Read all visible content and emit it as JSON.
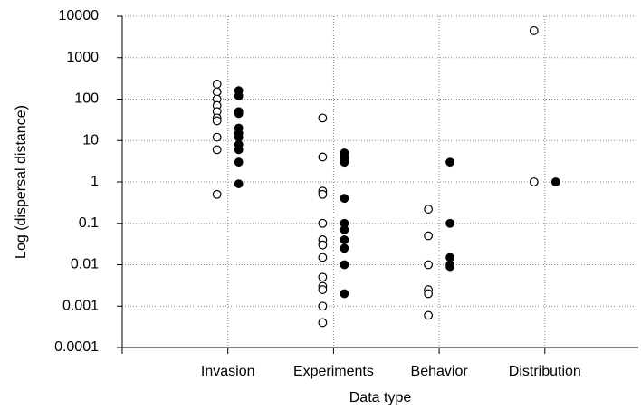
{
  "chart_data": {
    "type": "scatter",
    "x_label": "Data type",
    "y_label": "Log (dispersal distance)",
    "categories": [
      "Invasion",
      "Experiments",
      "Behavior",
      "Distribution"
    ],
    "log_y": true,
    "grid": true,
    "ylim": [
      0.0001,
      10000
    ],
    "yticks": [
      0.0001,
      0.001,
      0.01,
      0.1,
      1,
      10,
      100,
      1000,
      10000
    ],
    "series": [
      {
        "color": "#000000",
        "marker": "open",
        "values": [
          [
            230,
            150,
            100,
            70,
            50,
            35,
            30,
            12,
            6,
            0.5
          ],
          [
            35,
            4,
            0.6,
            0.5,
            0.1,
            0.04,
            0.03,
            0.015,
            0.005,
            0.003,
            0.0025,
            0.001,
            0.0004
          ],
          [
            0.22,
            0.05,
            0.01,
            0.0025,
            0.002,
            0.0006
          ],
          [
            4500,
            1
          ]
        ]
      },
      {
        "color": "#000000",
        "marker": "filled",
        "values": [
          [
            160,
            120,
            50,
            45,
            20,
            15,
            12,
            8,
            6,
            3,
            0.9
          ],
          [
            5,
            4,
            3.5,
            3,
            0.4,
            0.1,
            0.07,
            0.04,
            0.025,
            0.01,
            0.002
          ],
          [
            3,
            0.1,
            0.015,
            0.01,
            0.009
          ],
          [
            1
          ]
        ]
      }
    ]
  }
}
